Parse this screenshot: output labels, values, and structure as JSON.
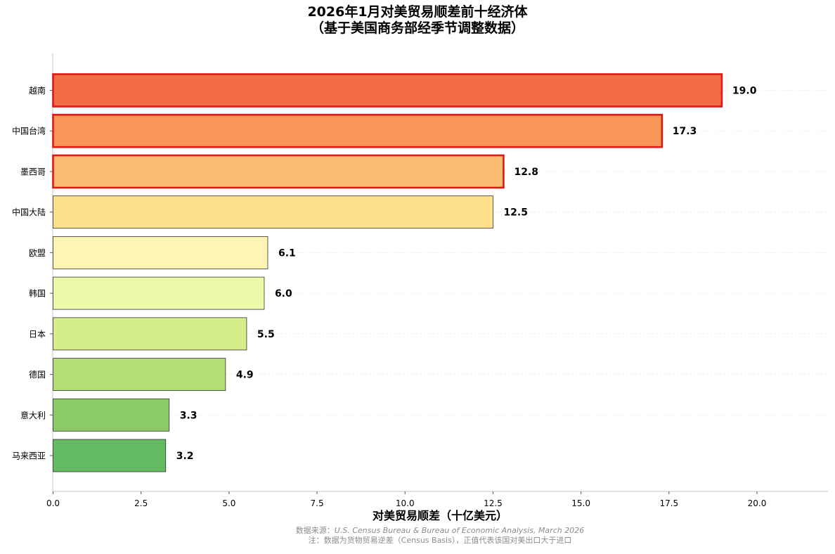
{
  "chart_data": {
    "type": "bar",
    "orientation": "horizontal",
    "title": "2026年1月对美贸易顺差前十经济体",
    "subtitle": "（基于美国商务部经季节调整数据）",
    "xlabel": "对美贸易顺差（十亿美元）",
    "ylabel": "",
    "xlim": [
      0,
      22.1
    ],
    "x_ticks": [
      "0.0",
      "2.5",
      "5.0",
      "7.5",
      "10.0",
      "12.5",
      "15.0",
      "17.5",
      "20.0"
    ],
    "x_tick_values": [
      0,
      2.5,
      5,
      7.5,
      10,
      12.5,
      15,
      17.5,
      20
    ],
    "grid": "horizontal-faint",
    "legend": "none",
    "categories": [
      "越南",
      "中国台湾",
      "墨西哥",
      "中国大陆",
      "欧盟",
      "韩国",
      "日本",
      "德国",
      "意大利",
      "马来西亚"
    ],
    "values": [
      19.0,
      17.3,
      12.8,
      12.5,
      6.1,
      6.0,
      5.5,
      4.9,
      3.3,
      3.2
    ],
    "value_labels": [
      "19.0",
      "17.3",
      "12.8",
      "12.5",
      "6.1",
      "6.0",
      "5.5",
      "4.9",
      "3.3",
      "3.2"
    ],
    "colors": [
      "#f26d47",
      "#f79657",
      "#fcbc73",
      "#fedf8c",
      "#fff5b3",
      "#eef8aa",
      "#d6ed8b",
      "#b5dd77",
      "#8bca67",
      "#64bb61"
    ],
    "highlighted": [
      true,
      true,
      true,
      false,
      false,
      false,
      false,
      false,
      false,
      false
    ],
    "highlight_color": "#dd1a14"
  },
  "footnotes": {
    "source_prefix": "数据来源：",
    "source_body": "U.S. Census Bureau & Bureau of Economic Analysis, March 2026",
    "note": "注：数据为货物贸易逆差（Census Basis），正值代表该国对美出口大于进口"
  }
}
